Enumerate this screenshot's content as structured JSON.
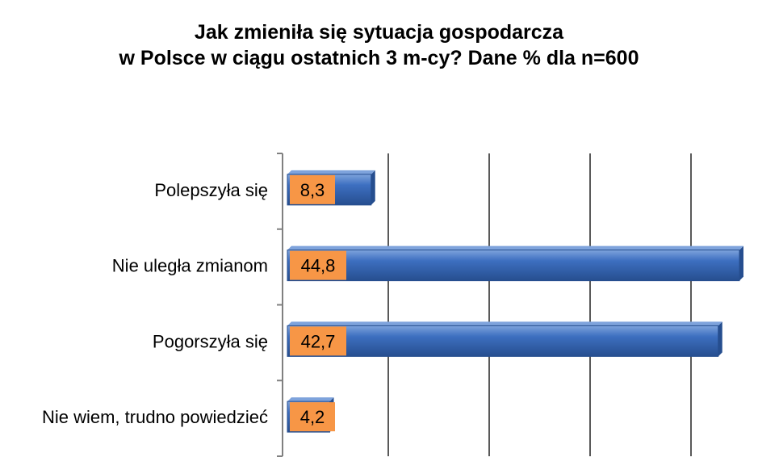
{
  "title_lines": [
    "Jak zmieniła się sytuacja gospodarcza",
    "w Polsce w ciągu ostatnich 3 m-cy? Dane % dla n=600"
  ],
  "colors": {
    "bar": "#3d6fc0",
    "bar_dark": "#264e8f",
    "bar_light": "#7ea3dc",
    "label_box": "#f79646",
    "gridline": "#595959",
    "axis": "#808080"
  },
  "chart_data": {
    "type": "bar",
    "orientation": "horizontal",
    "title": "Jak zmieniła się sytuacja gospodarcza w Polsce w ciągu ostatnich 3 m-cy? Dane % dla n=600",
    "categories": [
      "Polepszyła się",
      "Nie uległa zmianom",
      "Pogorszyła się",
      "Nie wiem, trudno powiedzieć"
    ],
    "values": [
      8.3,
      44.8,
      42.7,
      4.2
    ],
    "value_labels": [
      "8,3",
      "44,8",
      "42,7",
      "4,2"
    ],
    "xlabel": "",
    "ylabel": "",
    "xlim": [
      0,
      45
    ],
    "grid_major_step": 10,
    "grid": true,
    "axis_tick_labels_shown": false,
    "legend": "none"
  }
}
